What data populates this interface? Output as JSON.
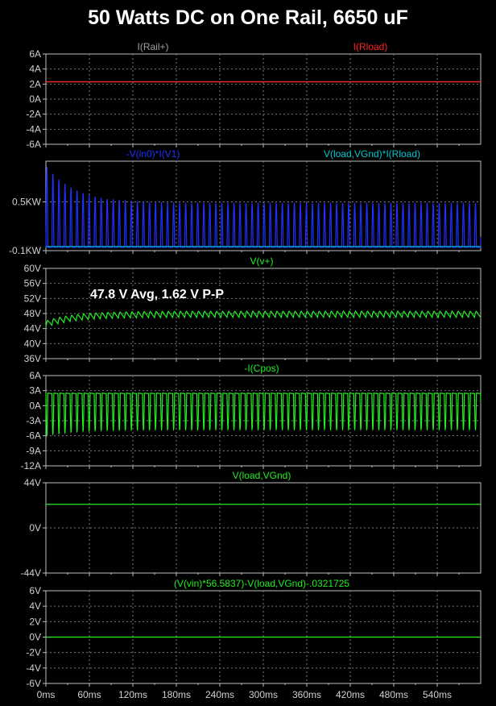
{
  "title": "50 Watts DC on One Rail, 6650 uF",
  "colors": {
    "background": "#000000",
    "axis": "#c0c0c0",
    "grid": "#7a7a7a",
    "tick_text": "#d0d0d0",
    "gray_trace": "#a0a0a0",
    "red_trace": "#ff2020",
    "blue_trace": "#2030ff",
    "cyan_trace": "#00c8d0",
    "green_trace": "#22ee22"
  },
  "x_axis": {
    "range": [
      0,
      600
    ],
    "unit": "ms",
    "ticks": [
      0,
      60,
      120,
      180,
      240,
      300,
      360,
      420,
      480,
      540
    ],
    "tick_labels": [
      "0ms",
      "60ms",
      "120ms",
      "180ms",
      "240ms",
      "300ms",
      "360ms",
      "420ms",
      "480ms",
      "540ms"
    ]
  },
  "chart_data": [
    {
      "type": "line",
      "traces": [
        {
          "name": "I(Rail+)",
          "color": "#a0a0a0",
          "kind": "constant",
          "value": 2.3
        },
        {
          "name": "I(Rload)",
          "color": "#ff2020",
          "kind": "constant",
          "value": 2.3
        }
      ],
      "ylim": [
        -6,
        6
      ],
      "y_ticks": [
        6,
        4,
        2,
        0,
        -2,
        -4,
        -6
      ],
      "y_tick_labels": [
        "6A",
        "4A",
        "2A",
        "0A",
        "-2A",
        "-4A",
        "-6A"
      ]
    },
    {
      "type": "line",
      "traces": [
        {
          "name": "-V(in0)*I(V1)",
          "color": "#2030ff",
          "kind": "pulse",
          "period_ms": 8.33,
          "base": -0.06,
          "peak_start": 0.95,
          "peak_steady": 0.48,
          "decay_ms": 40
        },
        {
          "name": "V(load,VGnd)*I(Rload)",
          "color": "#00c8d0",
          "kind": "constant",
          "value": -0.05
        }
      ],
      "ylim": [
        -0.1,
        1.0
      ],
      "y_ticks": [
        0.5,
        -0.1
      ],
      "y_tick_labels": [
        "0.5KW",
        "-0.1KW"
      ]
    },
    {
      "type": "line",
      "traces": [
        {
          "name": "V(v+)",
          "color": "#22ee22",
          "kind": "ripple",
          "period_ms": 8.33,
          "mean": 47.8,
          "pp": 1.62,
          "start": 45.2,
          "settle_ms": 40
        }
      ],
      "annotation": "47.8 V Avg, 1.62 V P-P",
      "ylim": [
        36,
        60
      ],
      "y_ticks": [
        60,
        56,
        52,
        48,
        44,
        40,
        36
      ],
      "y_tick_labels": [
        "60V",
        "56V",
        "52V",
        "48V",
        "44V",
        "40V",
        "36V"
      ]
    },
    {
      "type": "line",
      "traces": [
        {
          "name": "-I(Cpos)",
          "color": "#22ee22",
          "kind": "capcurrent",
          "period_ms": 8.33,
          "top": 2.5,
          "bottom_start": -6.0,
          "bottom_steady": -4.8,
          "decay_ms": 40
        }
      ],
      "ylim": [
        -12,
        6
      ],
      "y_ticks": [
        6,
        3,
        0,
        -3,
        -6,
        -9,
        -12
      ],
      "y_tick_labels": [
        "6A",
        "3A",
        "0A",
        "-3A",
        "-6A",
        "-9A",
        "-12A"
      ]
    },
    {
      "type": "line",
      "traces": [
        {
          "name": "V(load,VGnd)",
          "color": "#22ee22",
          "kind": "constant",
          "value": 23
        }
      ],
      "ylim": [
        -44,
        44
      ],
      "y_ticks": [
        44,
        0,
        -44
      ],
      "y_tick_labels": [
        "44V",
        "0V",
        "-44V"
      ]
    },
    {
      "type": "line",
      "traces": [
        {
          "name": "(V(vin)*56.5837)-V(load,VGnd)-.0321725",
          "color": "#22ee22",
          "kind": "constant",
          "value": 0
        }
      ],
      "ylim": [
        -6,
        6
      ],
      "y_ticks": [
        6,
        4,
        2,
        0,
        -2,
        -4,
        -6
      ],
      "y_tick_labels": [
        "6V",
        "4V",
        "2V",
        "0V",
        "-2V",
        "-4V",
        "-6V"
      ]
    }
  ]
}
